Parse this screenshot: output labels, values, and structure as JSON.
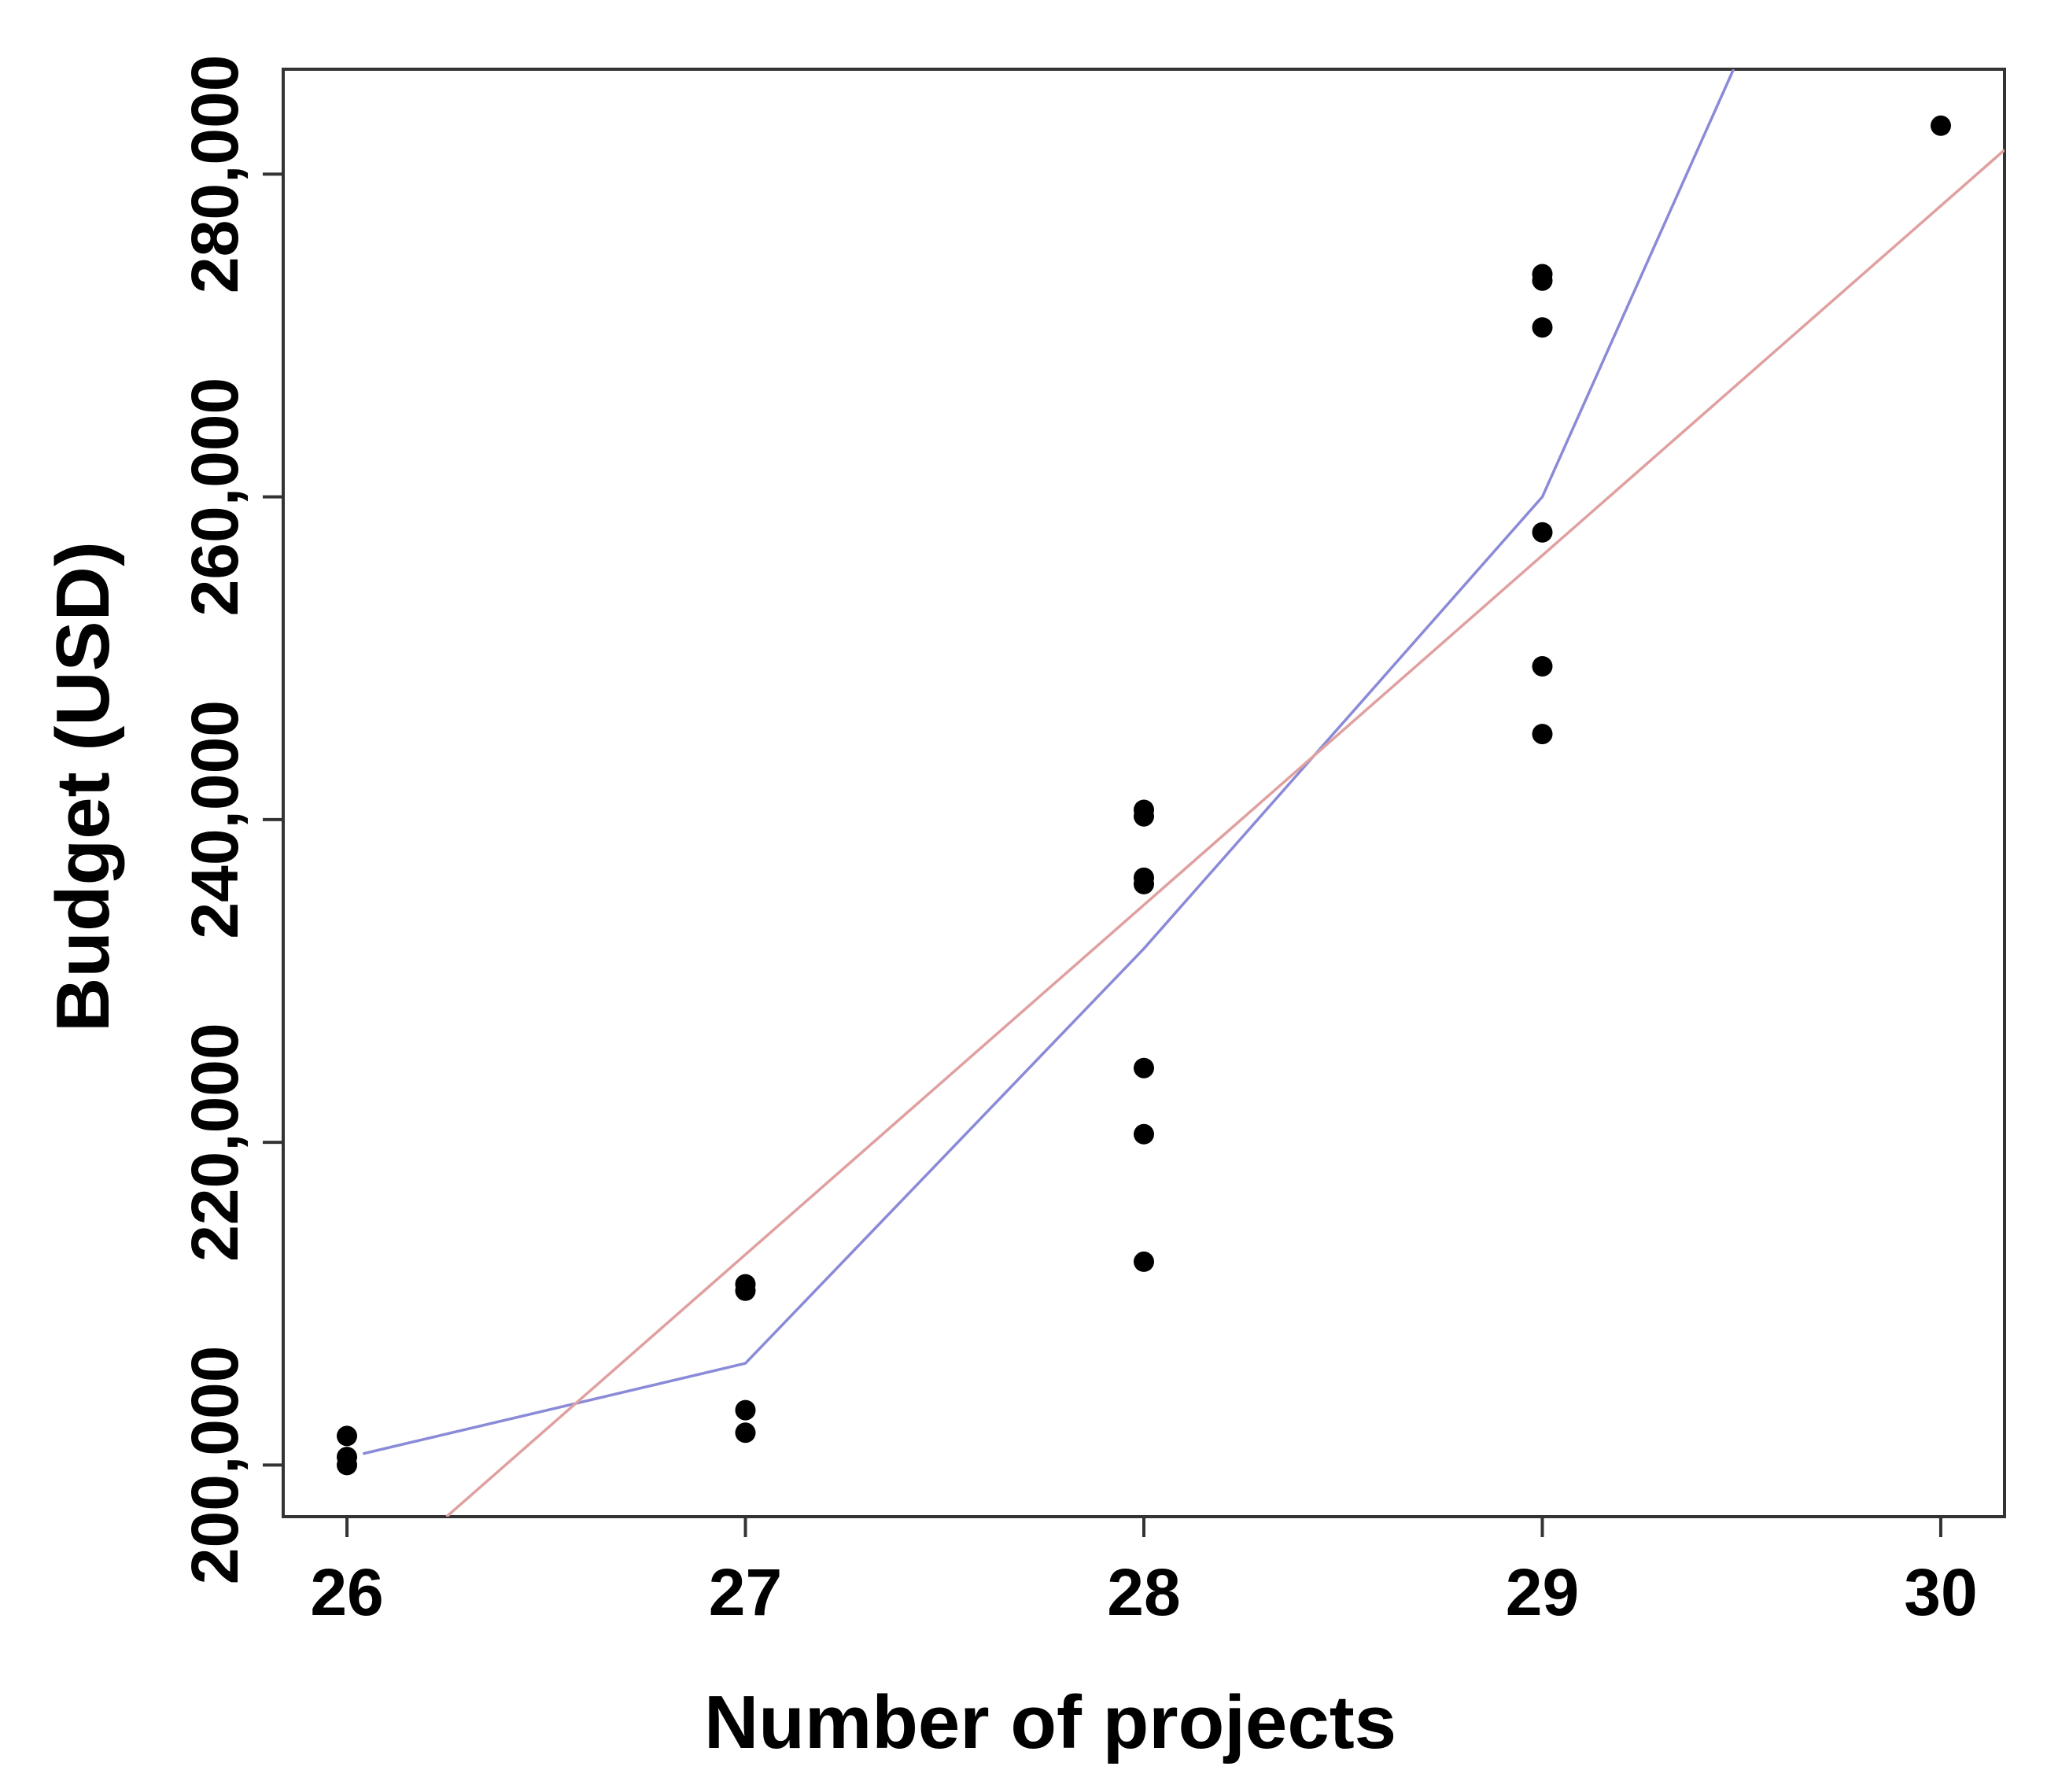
{
  "chart_data": {
    "type": "scatter",
    "xlabel": "Number of projects",
    "ylabel": "Budget (USD)",
    "xlim": [
      25.84,
      30.16
    ],
    "ylim": [
      196800,
      286500
    ],
    "x_ticks": [
      26,
      27,
      28,
      29,
      30
    ],
    "x_tick_labels": [
      "26",
      "27",
      "28",
      "29",
      "30"
    ],
    "y_ticks": [
      200000,
      220000,
      240000,
      260000,
      280000
    ],
    "y_tick_labels": [
      "200,000",
      "220,000",
      "240,000",
      "260,000",
      "280,000"
    ],
    "grid": false,
    "legend": "none",
    "points": {
      "color": "#000000",
      "x": [
        26,
        26,
        26,
        27,
        27,
        27,
        27,
        28,
        28,
        28,
        28,
        28,
        28,
        28,
        29,
        29,
        29,
        29,
        29,
        29,
        30
      ],
      "y": [
        201800,
        200500,
        200000,
        211200,
        210800,
        203400,
        202000,
        240600,
        240200,
        236400,
        236000,
        224600,
        220500,
        212600,
        273800,
        273400,
        270500,
        257800,
        249500,
        245300,
        283000
      ]
    },
    "lines": [
      {
        "color": "#8a8ad8",
        "x": [
          26.04,
          27.0,
          28.0,
          29.0,
          29.48
        ],
        "y": [
          200700,
          206300,
          232000,
          260000,
          286500
        ]
      },
      {
        "color": "#e0a0a0",
        "x": [
          26.25,
          30.16
        ],
        "y": [
          196800,
          281500
        ]
      }
    ]
  }
}
